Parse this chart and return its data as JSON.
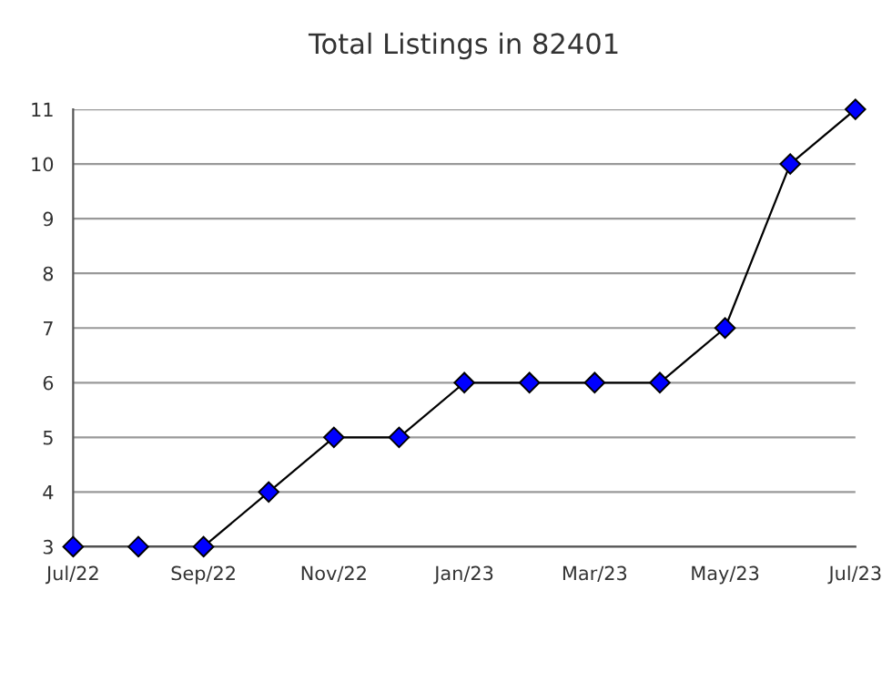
{
  "chart_data": {
    "type": "line",
    "title": "Total Listings in 82401",
    "categories": [
      "Jul/22",
      null,
      "Sep/22",
      null,
      "Nov/22",
      null,
      "Jan/23",
      null,
      "Mar/23",
      null,
      "May/23",
      null,
      "Jul/23"
    ],
    "series": [
      {
        "color": "#0000ff",
        "values": [
          3,
          3,
          3,
          4,
          5,
          5,
          6,
          6,
          6,
          6,
          7,
          10,
          11
        ]
      }
    ],
    "ylim": [
      3,
      11
    ],
    "yticks": [
      3,
      4,
      5,
      6,
      7,
      8,
      9,
      10,
      11
    ],
    "grid": "y",
    "marker": "diamond",
    "line_style": "solid"
  }
}
